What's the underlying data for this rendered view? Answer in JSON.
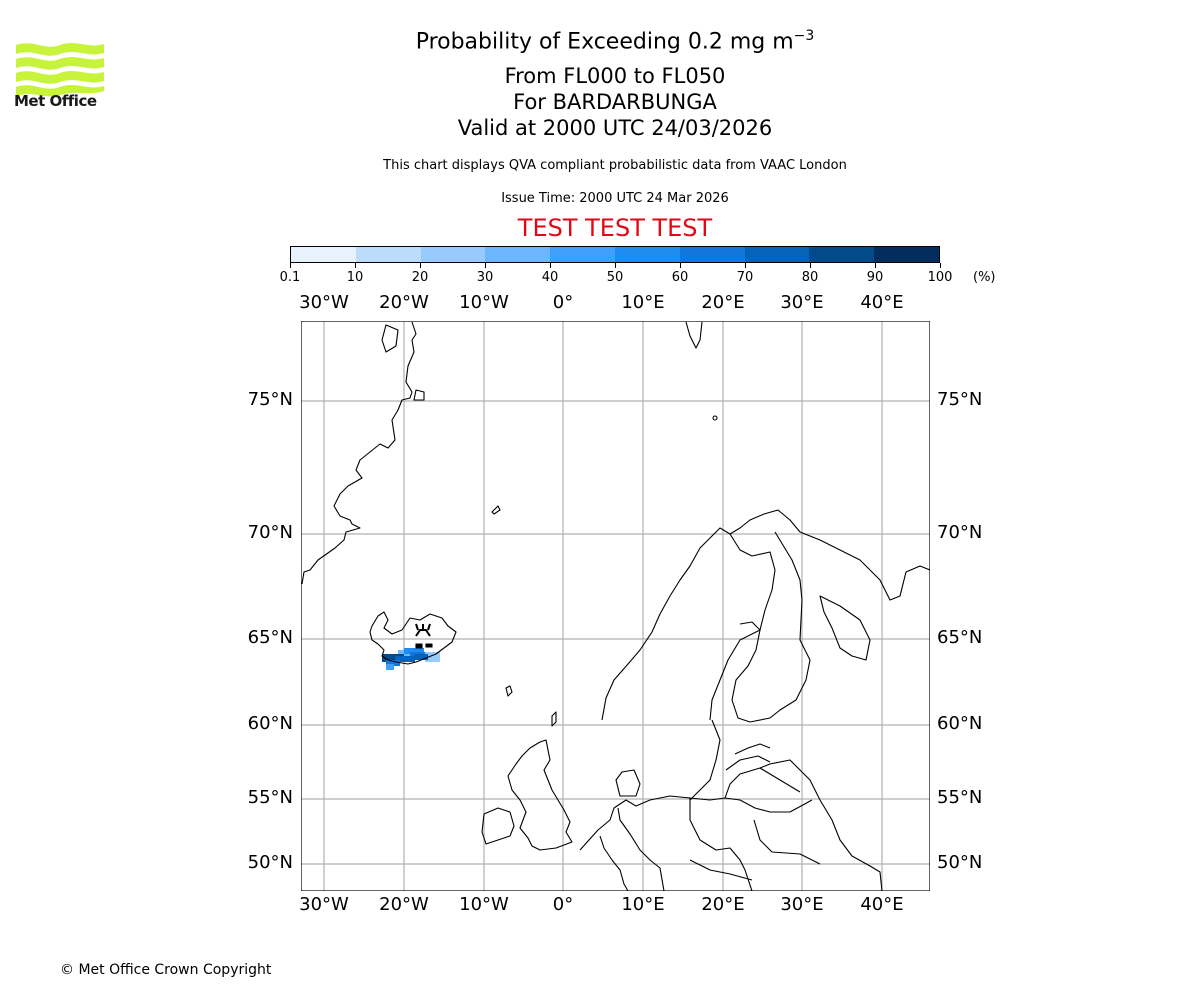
{
  "logo": {
    "text": "Met Office",
    "color": "#c7f33a"
  },
  "header": {
    "title_main": "Probability of Exceeding 0.2 mg m",
    "title_sup": "−3",
    "line2": "From FL000 to FL050",
    "line3": "For BARDARBUNGA",
    "line4": "Valid at 2000 UTC 24/03/2026",
    "disclaimer": "This chart displays QVA compliant probabilistic data from VAAC London",
    "issue_time": "Issue Time: 2000 UTC 24 Mar 2026",
    "test_banner": "TEST TEST TEST",
    "test_color": "#e30613"
  },
  "colorbar": {
    "unit": "(%)",
    "ticks": [
      "0.1",
      "10",
      "20",
      "30",
      "40",
      "50",
      "60",
      "70",
      "80",
      "90",
      "100"
    ],
    "colors": [
      "#e6f2fd",
      "#bcdcfc",
      "#98cafd",
      "#6cb6fd",
      "#3ea0fb",
      "#1e8cf0",
      "#1277dc",
      "#0563b8",
      "#034a8a",
      "#022d5c"
    ]
  },
  "map": {
    "lon_labels": [
      "30°W",
      "20°W",
      "10°W",
      "0°",
      "10°E",
      "20°E",
      "30°E",
      "40°E"
    ],
    "lat_labels": [
      "75°N",
      "70°N",
      "65°N",
      "60°N",
      "55°N",
      "50°N"
    ],
    "volcano": "BARDARBUNGA",
    "gridline_color": "#b0b0b0"
  },
  "chart_data": {
    "type": "heatmap",
    "title": "Probability of Exceeding 0.2 mg m-3, From FL000 to FL050, For BARDARBUNGA, Valid at 2000 UTC 24/03/2026",
    "colorbar_levels": [
      0.1,
      10,
      20,
      30,
      40,
      50,
      60,
      70,
      80,
      90,
      100
    ],
    "colorbar_unit": "%",
    "x_ticks": [
      "30°W",
      "20°W",
      "10°W",
      "0°",
      "10°E",
      "20°E",
      "30°E",
      "40°E"
    ],
    "y_ticks": [
      "75°N",
      "70°N",
      "65°N",
      "60°N",
      "55°N",
      "50°N"
    ],
    "extent": {
      "lon": [
        -33,
        46
      ],
      "lat": [
        48.5,
        78
      ]
    },
    "plume": {
      "region": "South coast of Iceland",
      "lon_range": [
        -23,
        -16
      ],
      "lat_range": [
        63.2,
        64.3
      ],
      "max_probability_band": "90-100"
    }
  },
  "footer": {
    "copyright": "© Met Office Crown Copyright"
  }
}
